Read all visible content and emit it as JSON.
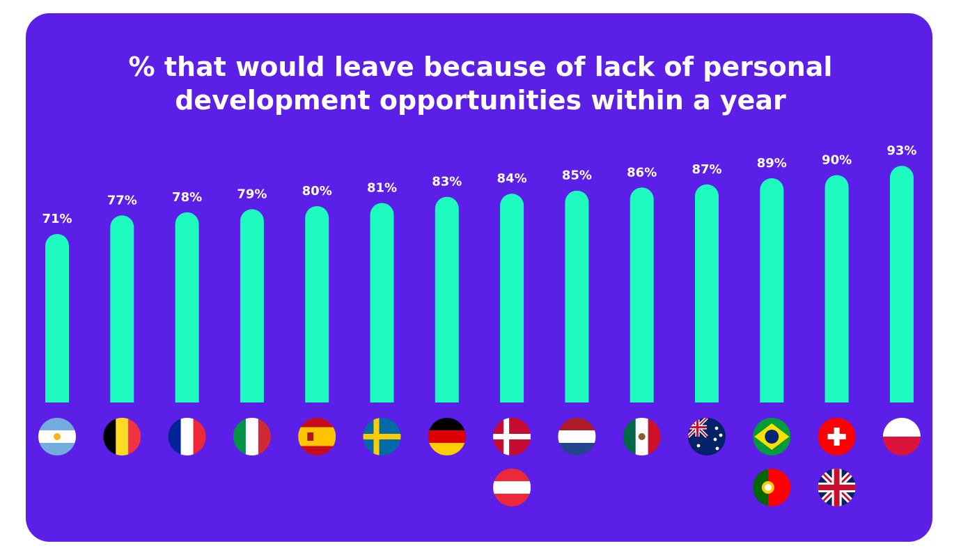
{
  "title": {
    "line1": "% that would leave because of lack of personal",
    "line2": "development opportunities within a year"
  },
  "colors": {
    "background": "#5b1fe8",
    "bar": "#1dfbbf",
    "text": "#ffffff"
  },
  "chart_data": {
    "type": "bar",
    "title": "% that would leave because of lack of personal development opportunities within a year",
    "ylim": [
      0,
      100
    ],
    "grid": false,
    "legend": "none",
    "categories": [
      "Argentina",
      "Belgium",
      "France",
      "Italy",
      "Spain",
      "Sweden",
      "Germany",
      "Denmark / Austria",
      "Netherlands",
      "Mexico",
      "Australia",
      "Brazil / Portugal",
      "Switzerland / United Kingdom",
      "Poland"
    ],
    "values": [
      71,
      77,
      78,
      79,
      80,
      81,
      83,
      84,
      85,
      86,
      87,
      89,
      90,
      93
    ],
    "data_labels": [
      "71%",
      "77%",
      "78%",
      "79%",
      "80%",
      "81%",
      "83%",
      "84%",
      "85%",
      "86%",
      "87%",
      "89%",
      "90%",
      "93%"
    ],
    "flags": [
      [
        "argentina-flag-icon"
      ],
      [
        "belgium-flag-icon"
      ],
      [
        "france-flag-icon"
      ],
      [
        "italy-flag-icon"
      ],
      [
        "spain-flag-icon"
      ],
      [
        "sweden-flag-icon"
      ],
      [
        "germany-flag-icon"
      ],
      [
        "denmark-flag-icon",
        "austria-flag-icon"
      ],
      [
        "netherlands-flag-icon"
      ],
      [
        "mexico-flag-icon"
      ],
      [
        "australia-flag-icon"
      ],
      [
        "brazil-flag-icon",
        "portugal-flag-icon"
      ],
      [
        "switzerland-flag-icon",
        "united-kingdom-flag-icon"
      ],
      [
        "poland-flag-icon"
      ]
    ]
  }
}
